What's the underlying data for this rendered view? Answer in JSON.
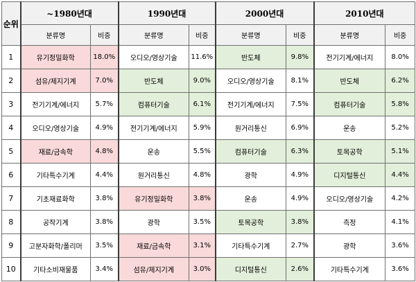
{
  "header": {
    "rank_label": "순위",
    "category_label": "분류명",
    "share_label": "비중",
    "decades": [
      "~1980년대",
      "1990년대",
      "2000년대",
      "2010년대"
    ]
  },
  "colors": {
    "pink": "#f9d9d9",
    "green": "#e2efda",
    "white": "#ffffff"
  },
  "rows": [
    {
      "rank": "1",
      "cells": [
        {
          "name": "유기정밀화학",
          "pct": "18.0%",
          "hl": "pink"
        },
        {
          "name": "오디오/영상기술",
          "pct": "11.6%",
          "hl": ""
        },
        {
          "name": "반도체",
          "pct": "9.8%",
          "hl": "green"
        },
        {
          "name": "전기기계/에너지",
          "pct": "8.0%",
          "hl": ""
        }
      ]
    },
    {
      "rank": "2",
      "cells": [
        {
          "name": "섬유/제지기계",
          "pct": "7.0%",
          "hl": "pink"
        },
        {
          "name": "반도체",
          "pct": "9.0%",
          "hl": "green"
        },
        {
          "name": "오디오/영상기술",
          "pct": "8.1%",
          "hl": ""
        },
        {
          "name": "반도체",
          "pct": "6.2%",
          "hl": "green"
        }
      ]
    },
    {
      "rank": "3",
      "cells": [
        {
          "name": "전기기계/에너지",
          "pct": "5.7%",
          "hl": ""
        },
        {
          "name": "컴퓨터기술",
          "pct": "6.1%",
          "hl": "green"
        },
        {
          "name": "전기기계/에너지",
          "pct": "7.5%",
          "hl": ""
        },
        {
          "name": "컴퓨터기술",
          "pct": "5.8%",
          "hl": "green"
        }
      ]
    },
    {
      "rank": "4",
      "cells": [
        {
          "name": "오디오/영상기술",
          "pct": "4.9%",
          "hl": ""
        },
        {
          "name": "전기기계/에너지",
          "pct": "5.9%",
          "hl": ""
        },
        {
          "name": "원거리통신",
          "pct": "6.9%",
          "hl": ""
        },
        {
          "name": "운송",
          "pct": "5.2%",
          "hl": ""
        }
      ]
    },
    {
      "rank": "5",
      "cells": [
        {
          "name": "재료/금속학",
          "pct": "4.8%",
          "hl": "pink"
        },
        {
          "name": "운송",
          "pct": "5.5%",
          "hl": ""
        },
        {
          "name": "컴퓨터기술",
          "pct": "6.3%",
          "hl": "green"
        },
        {
          "name": "토목공학",
          "pct": "5.1%",
          "hl": "green"
        }
      ]
    },
    {
      "rank": "6",
      "cells": [
        {
          "name": "기타특수기계",
          "pct": "4.4%",
          "hl": ""
        },
        {
          "name": "원거리통신",
          "pct": "4.8%",
          "hl": ""
        },
        {
          "name": "광학",
          "pct": "4.9%",
          "hl": ""
        },
        {
          "name": "디지털통신",
          "pct": "4.4%",
          "hl": "green"
        }
      ]
    },
    {
      "rank": "7",
      "cells": [
        {
          "name": "기초재료화학",
          "pct": "3.8%",
          "hl": ""
        },
        {
          "name": "유기정밀화학",
          "pct": "3.8%",
          "hl": "pink"
        },
        {
          "name": "운송",
          "pct": "4.9%",
          "hl": ""
        },
        {
          "name": "오디오/영상기술",
          "pct": "4.2%",
          "hl": ""
        }
      ]
    },
    {
      "rank": "8",
      "cells": [
        {
          "name": "공작기계",
          "pct": "3.8%",
          "hl": ""
        },
        {
          "name": "광학",
          "pct": "3.5%",
          "hl": ""
        },
        {
          "name": "토목공학",
          "pct": "3.8%",
          "hl": "green"
        },
        {
          "name": "측정",
          "pct": "4.1%",
          "hl": ""
        }
      ]
    },
    {
      "rank": "9",
      "cells": [
        {
          "name": "고분자화학/폴리머",
          "pct": "3.5%",
          "hl": ""
        },
        {
          "name": "재료/금속학",
          "pct": "3.1%",
          "hl": "pink"
        },
        {
          "name": "기타특수기계",
          "pct": "2.7%",
          "hl": ""
        },
        {
          "name": "광학",
          "pct": "3.6%",
          "hl": ""
        }
      ]
    },
    {
      "rank": "10",
      "cells": [
        {
          "name": "기타소비재물품",
          "pct": "3.4%",
          "hl": ""
        },
        {
          "name": "섬유/제지기계",
          "pct": "3.0%",
          "hl": "pink"
        },
        {
          "name": "디지털통신",
          "pct": "2.6%",
          "hl": "green"
        },
        {
          "name": "기타특수기계",
          "pct": "3.6%",
          "hl": ""
        }
      ]
    }
  ]
}
